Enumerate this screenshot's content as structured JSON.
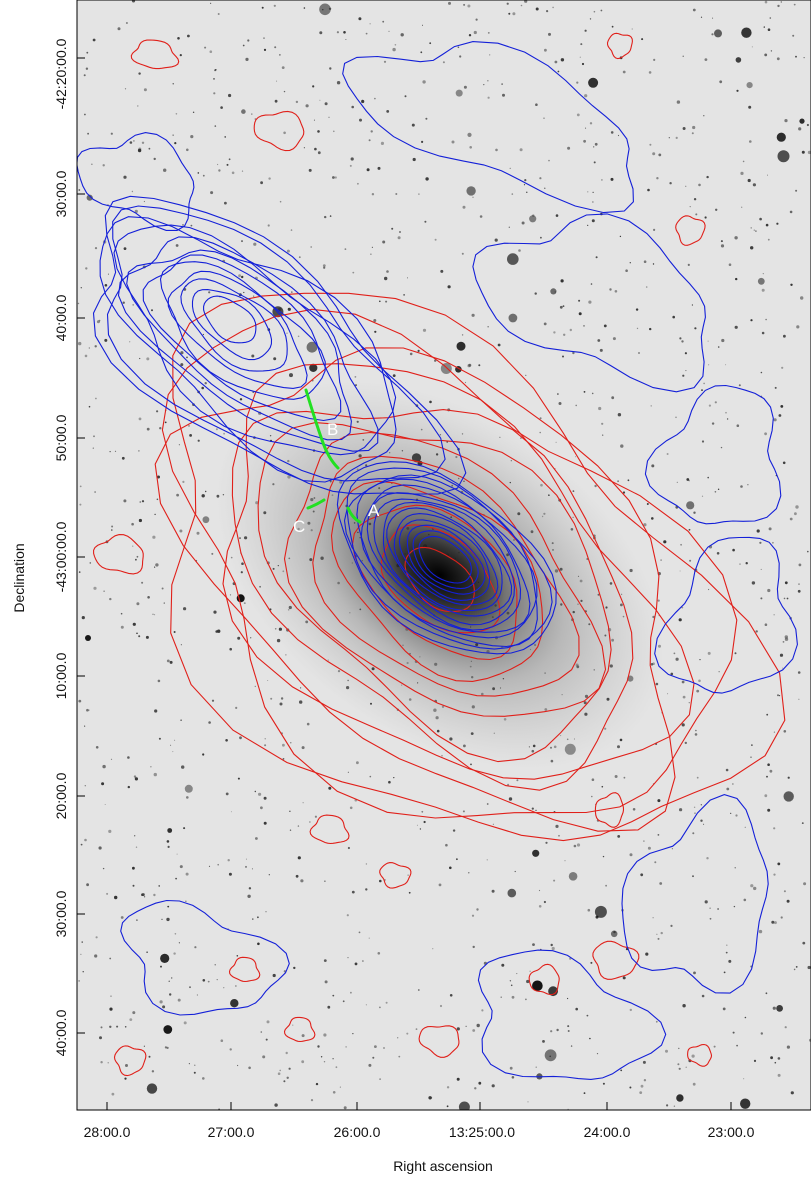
{
  "figure": {
    "xaxis_label": "Right ascension",
    "yaxis_label": "Declination",
    "x_ticks": [
      "28:00.0",
      "27:00.0",
      "26:00.0",
      "13:25:00.0",
      "24:00.0",
      "23:00.0"
    ],
    "y_ticks": [
      "-42:20:00.0",
      "30:00.0",
      "40:00.0",
      "50:00.0",
      "-43:00:00.0",
      "10:00.0",
      "20:00.0",
      "30:00.0",
      "40:00.0"
    ],
    "annotations": [
      "A",
      "B",
      "C"
    ],
    "colors": {
      "contour_red": "#e0201a",
      "contour_blue": "#1420d8",
      "marker_green": "#22e022",
      "label_white": "#ffffff"
    }
  }
}
